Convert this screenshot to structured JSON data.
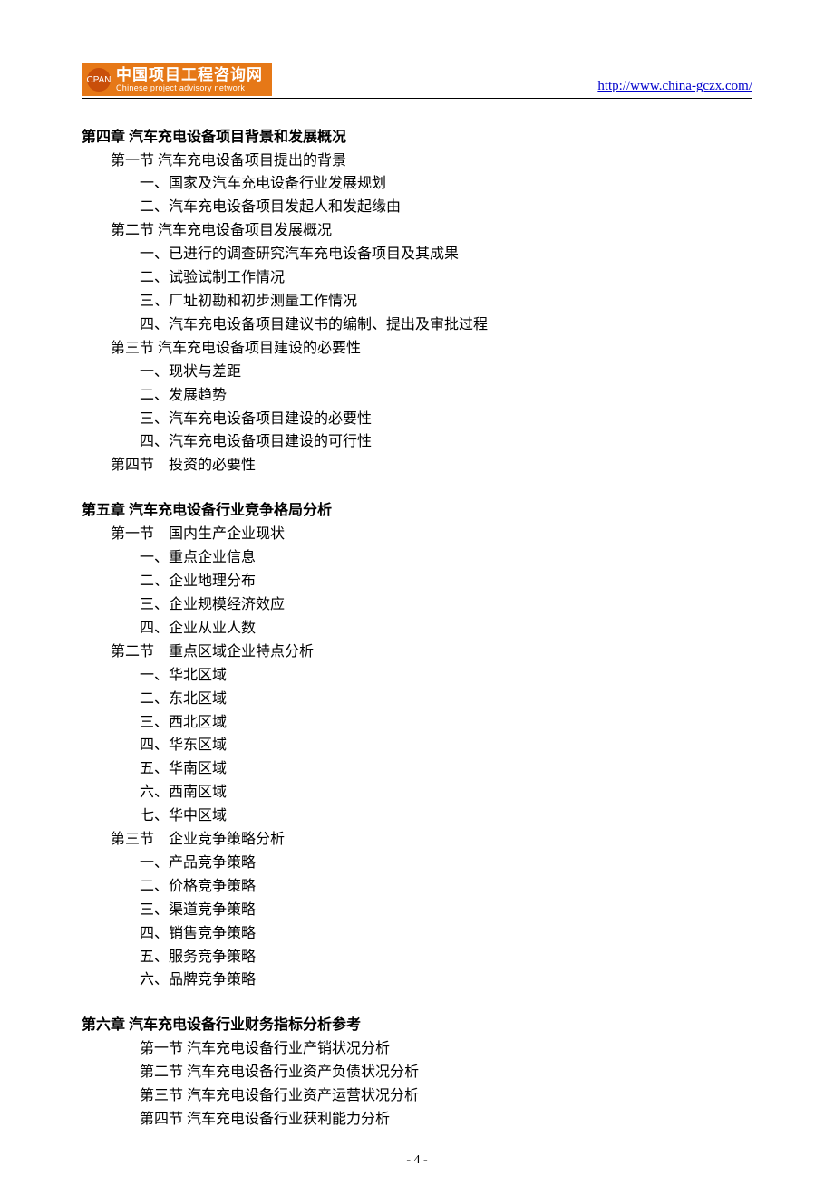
{
  "header": {
    "logo_mark": "CPAN",
    "logo_cn": "中国项目工程咨询网",
    "logo_en": "Chinese project advisory network",
    "url": "http://www.china-gczx.com/"
  },
  "colors": {
    "logo_bg": "#e67817",
    "logo_mark_bg": "#c94f0a",
    "logo_text": "#ffffff",
    "link": "#0000cc",
    "body_text": "#000000",
    "page_bg": "#ffffff",
    "rule": "#000000"
  },
  "typography": {
    "body_font": "SimSun",
    "body_size_pt": 12,
    "line_height": 1.62,
    "chapter_bold": true
  },
  "ch4": {
    "title": "第四章  汽车充电设备项目背景和发展概况",
    "s1": "第一节  汽车充电设备项目提出的背景",
    "s1_1": "一、国家及汽车充电设备行业发展规划",
    "s1_2": "二、汽车充电设备项目发起人和发起缘由",
    "s2": "第二节  汽车充电设备项目发展概况",
    "s2_1": "一、已进行的调查研究汽车充电设备项目及其成果",
    "s2_2": "二、试验试制工作情况",
    "s2_3": "三、厂址初勘和初步测量工作情况",
    "s2_4": "四、汽车充电设备项目建议书的编制、提出及审批过程",
    "s3": "第三节  汽车充电设备项目建设的必要性",
    "s3_1": "一、现状与差距",
    "s3_2": "二、发展趋势",
    "s3_3": "三、汽车充电设备项目建设的必要性",
    "s3_4": "四、汽车充电设备项目建设的可行性",
    "s4": "第四节　投资的必要性"
  },
  "ch5": {
    "title": "第五章  汽车充电设备行业竞争格局分析",
    "s1": "第一节　国内生产企业现状",
    "s1_1": "一、重点企业信息",
    "s1_2": "二、企业地理分布",
    "s1_3": "三、企业规模经济效应",
    "s1_4": "四、企业从业人数",
    "s2": "第二节　重点区域企业特点分析",
    "s2_1": "一、华北区域",
    "s2_2": "二、东北区域",
    "s2_3": "三、西北区域",
    "s2_4": "四、华东区域",
    "s2_5": "五、华南区域",
    "s2_6": "六、西南区域",
    "s2_7": "七、华中区域",
    "s3": "第三节　企业竞争策略分析",
    "s3_1": "一、产品竞争策略",
    "s3_2": "二、价格竞争策略",
    "s3_3": "三、渠道竞争策略",
    "s3_4": "四、销售竞争策略",
    "s3_5": "五、服务竞争策略",
    "s3_6": "六、品牌竞争策略"
  },
  "ch6": {
    "title": "第六章  汽车充电设备行业财务指标分析参考",
    "s1": "第一节  汽车充电设备行业产销状况分析",
    "s2": "第二节  汽车充电设备行业资产负债状况分析",
    "s3": "第三节  汽车充电设备行业资产运营状况分析",
    "s4": "第四节  汽车充电设备行业获利能力分析"
  },
  "page_number": "- 4 -"
}
